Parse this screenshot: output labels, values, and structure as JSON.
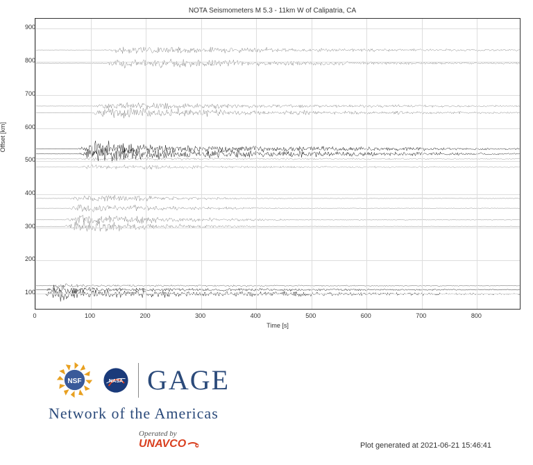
{
  "chart": {
    "title": "NOTA Seismometers M 5.3 - 11km W of Calipatria, CA",
    "xlabel": "Time [s]",
    "ylabel": "Offset [km]",
    "xlim": [
      0,
      880
    ],
    "ylim": [
      50,
      930
    ],
    "xticks": [
      0,
      100,
      200,
      300,
      400,
      500,
      600,
      700,
      800
    ],
    "yticks": [
      100,
      200,
      300,
      400,
      500,
      600,
      700,
      800,
      900
    ],
    "background_color": "#ffffff",
    "grid_color": "#dddddd",
    "axis_color": "#333333",
    "title_fontsize": 10,
    "label_fontsize": 9,
    "tick_fontsize": 9,
    "traces": [
      {
        "offset": 95,
        "color": "#1a1a1a",
        "onset": 15,
        "peak_amp": 28,
        "burst_end": 120,
        "decay_end": 880,
        "tail_amp": 2
      },
      {
        "offset": 108,
        "color": "#1a1a1a",
        "onset": 18,
        "peak_amp": 15,
        "burst_end": 110,
        "decay_end": 880,
        "tail_amp": 1.5
      },
      {
        "offset": 120,
        "color": "#555555",
        "onset": 20,
        "peak_amp": 8,
        "burst_end": 100,
        "decay_end": 880,
        "tail_amp": 1
      },
      {
        "offset": 300,
        "color": "#888888",
        "onset": 50,
        "peak_amp": 22,
        "burst_end": 200,
        "decay_end": 450,
        "tail_amp": 1
      },
      {
        "offset": 320,
        "color": "#888888",
        "onset": 50,
        "peak_amp": 20,
        "burst_end": 220,
        "decay_end": 500,
        "tail_amp": 1.5
      },
      {
        "offset": 355,
        "color": "#888888",
        "onset": 55,
        "peak_amp": 18,
        "burst_end": 210,
        "decay_end": 480,
        "tail_amp": 1
      },
      {
        "offset": 385,
        "color": "#888888",
        "onset": 60,
        "peak_amp": 15,
        "burst_end": 220,
        "decay_end": 500,
        "tail_amp": 1
      },
      {
        "offset": 480,
        "color": "#999999",
        "onset": 70,
        "peak_amp": 10,
        "burst_end": 300,
        "decay_end": 880,
        "tail_amp": 2
      },
      {
        "offset": 505,
        "color": "#999999",
        "onset": 72,
        "peak_amp": 8,
        "burst_end": 300,
        "decay_end": 880,
        "tail_amp": 2
      },
      {
        "offset": 520,
        "color": "#1a1a1a",
        "onset": 75,
        "peak_amp": 32,
        "burst_end": 280,
        "decay_end": 880,
        "tail_amp": 3
      },
      {
        "offset": 535,
        "color": "#1a1a1a",
        "onset": 75,
        "peak_amp": 30,
        "burst_end": 280,
        "decay_end": 880,
        "tail_amp": 3
      },
      {
        "offset": 645,
        "color": "#888888",
        "onset": 95,
        "peak_amp": 20,
        "burst_end": 350,
        "decay_end": 880,
        "tail_amp": 3
      },
      {
        "offset": 665,
        "color": "#888888",
        "onset": 100,
        "peak_amp": 15,
        "burst_end": 350,
        "decay_end": 880,
        "tail_amp": 3
      },
      {
        "offset": 795,
        "color": "#888888",
        "onset": 115,
        "peak_amp": 18,
        "burst_end": 400,
        "decay_end": 880,
        "tail_amp": 3
      },
      {
        "offset": 835,
        "color": "#888888",
        "onset": 120,
        "peak_amp": 15,
        "burst_end": 420,
        "decay_end": 880,
        "tail_amp": 3
      }
    ]
  },
  "footer": {
    "gage": "GAGE",
    "nota": "Network of the Americas",
    "operated": "Operated by",
    "unavco": "UNAVCO",
    "plot_generated": "Plot generated at 2021-06-21 15:46:41",
    "nsf_color": "#e8a020",
    "nsf_text": "NSF",
    "nasa_bg": "#1a3a7a",
    "nasa_text": "NASA",
    "gage_color": "#2b4a7a",
    "unavco_color": "#d94020"
  }
}
